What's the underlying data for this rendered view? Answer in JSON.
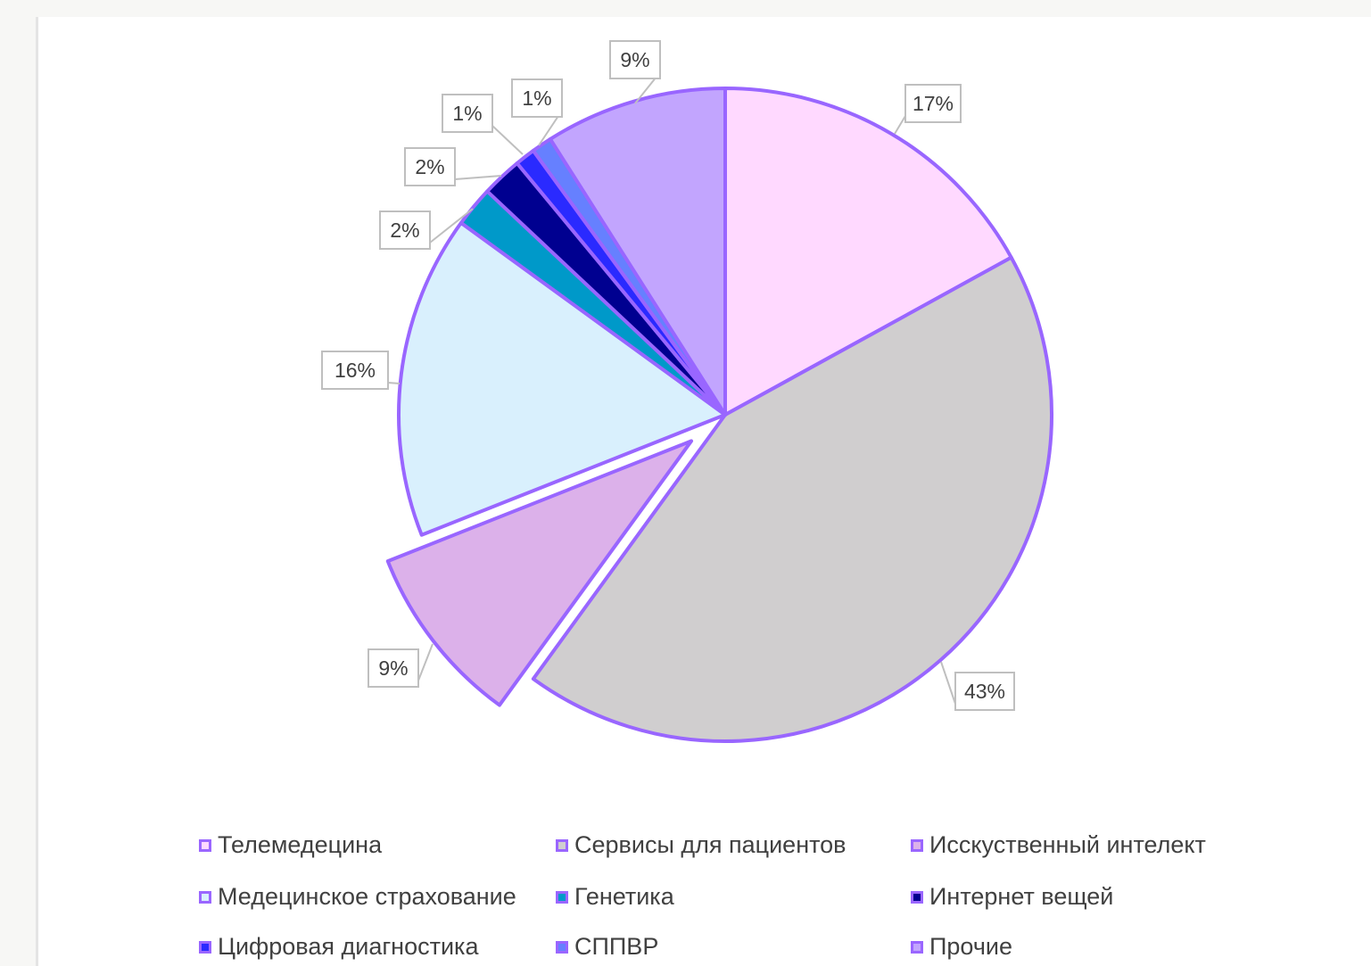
{
  "chart_data": {
    "type": "pie",
    "slice_border_color": "#9966ff",
    "slices": [
      {
        "name": "Телемедецина",
        "value": 17,
        "label": "17%",
        "color": "#ffd9ff"
      },
      {
        "name": "Сервисы для пациентов",
        "value": 43,
        "label": "43%",
        "color": "#d0cecf"
      },
      {
        "name": "Исскуственный интелект",
        "value": 9,
        "label": "9%",
        "color": "#dcb1ea",
        "exploded": true
      },
      {
        "name": "Медецинское страхование",
        "value": 16,
        "label": "16%",
        "color": "#d9f0fd"
      },
      {
        "name": "Генетика",
        "value": 2,
        "label": "2%",
        "color": "#0099c9"
      },
      {
        "name": "Интернет вещей",
        "value": 2,
        "label": "2%",
        "color": "#000090"
      },
      {
        "name": "Цифровая диагностика",
        "value": 1,
        "label": "1%",
        "color": "#2a2aff"
      },
      {
        "name": "СППВР",
        "value": 1,
        "label": "1%",
        "color": "#6680ff"
      },
      {
        "name": "Прочие",
        "value": 9,
        "label": "9%",
        "color": "#c2a5fe"
      }
    ],
    "legend_placement": "bottom"
  }
}
